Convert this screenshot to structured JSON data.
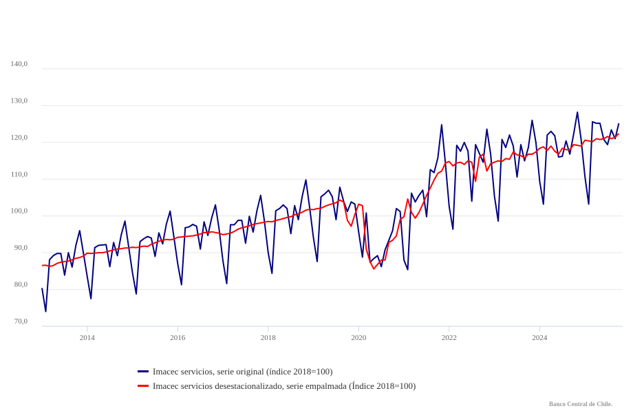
{
  "chart_data": {
    "type": "line",
    "title": "",
    "xlabel": "",
    "ylabel": "",
    "ylim": [
      70,
      140
    ],
    "yticks": [
      "70,0",
      "80,0",
      "90,0",
      "100,0",
      "110,0",
      "120,0",
      "130,0",
      "140,0"
    ],
    "ytick_values": [
      70,
      80,
      90,
      100,
      110,
      120,
      130,
      140
    ],
    "xticks": [
      "2014",
      "2016",
      "2018",
      "2020",
      "2022",
      "2024"
    ],
    "x_start": "2013-01",
    "x_frequency": "monthly",
    "grid": true,
    "legend_position": "bottom",
    "series": [
      {
        "name": "Imacec servicios, serie original (índice 2018=100)",
        "color": "#000080",
        "values": [
          80.4,
          74.0,
          88.1,
          89.2,
          89.8,
          89.8,
          83.9,
          90.0,
          86.1,
          92.0,
          96.0,
          89.8,
          83.5,
          77.5,
          91.4,
          92.0,
          92.1,
          92.2,
          86.2,
          92.8,
          89.2,
          94.8,
          98.6,
          91.6,
          84.6,
          78.8,
          93.0,
          93.8,
          94.4,
          94.0,
          89.0,
          95.4,
          92.4,
          97.8,
          101.3,
          94.2,
          87.0,
          81.3,
          96.8,
          97.0,
          97.7,
          97.2,
          91.0,
          98.4,
          94.7,
          99.4,
          103.0,
          96.2,
          87.8,
          81.6,
          97.6,
          97.6,
          98.8,
          98.8,
          92.6,
          99.9,
          95.6,
          101.4,
          105.6,
          98.6,
          90.0,
          84.4,
          101.4,
          102.0,
          103.0,
          102.0,
          95.2,
          102.8,
          99.0,
          105.2,
          109.8,
          102.2,
          94.0,
          87.6,
          105.2,
          106.0,
          107.0,
          105.2,
          99.0,
          107.8,
          104.0,
          101.2,
          103.8,
          103.2,
          95.6,
          88.8,
          100.8,
          87.4,
          88.4,
          89.2,
          86.2,
          90.8,
          93.4,
          96.0,
          102.0,
          101.2,
          88.0,
          85.4,
          106.2,
          103.8,
          105.6,
          107.0,
          99.8,
          112.6,
          111.8,
          115.8,
          124.8,
          114.2,
          102.6,
          96.4,
          119.2,
          117.6,
          120.0,
          117.6,
          104.0,
          119.4,
          117.0,
          114.6,
          123.6,
          116.8,
          105.4,
          98.6,
          120.8,
          118.6,
          122.0,
          119.0,
          110.6,
          119.4,
          115.0,
          118.6,
          126.0,
          120.0,
          109.4,
          103.2,
          122.0,
          123.0,
          121.8,
          116.0,
          116.2,
          120.4,
          116.8,
          122.2,
          128.2,
          120.8,
          110.8,
          103.2,
          125.6,
          125.2,
          125.2,
          120.8,
          119.4,
          123.4,
          121.0,
          125.2
        ]
      },
      {
        "name": "Imacec servicios desestacionalizado, serie empalmada (Índice 2018=100)",
        "color": "#ff0000",
        "values": [
          86.5,
          86.6,
          86.3,
          86.5,
          87.1,
          87.4,
          87.6,
          87.7,
          88.1,
          88.5,
          88.7,
          89.1,
          89.9,
          89.8,
          89.9,
          90.0,
          90.0,
          90.2,
          90.5,
          90.8,
          91.0,
          91.1,
          91.3,
          91.3,
          91.5,
          91.4,
          91.6,
          91.8,
          91.7,
          92.3,
          92.7,
          93.1,
          93.4,
          93.6,
          93.5,
          93.7,
          94.2,
          94.3,
          94.4,
          94.5,
          94.6,
          94.8,
          95.1,
          95.5,
          95.4,
          95.7,
          95.5,
          95.3,
          94.9,
          95.1,
          95.3,
          95.8,
          96.4,
          96.8,
          97.0,
          97.3,
          97.7,
          97.9,
          98.1,
          98.3,
          98.5,
          98.4,
          98.8,
          99.0,
          99.3,
          99.6,
          99.8,
          100.3,
          100.6,
          101.0,
          101.6,
          101.8,
          101.7,
          102.0,
          102.1,
          102.6,
          103.0,
          103.3,
          103.6,
          104.3,
          103.8,
          98.8,
          97.2,
          100.4,
          103.2,
          102.8,
          91.0,
          87.6,
          85.6,
          86.8,
          88.0,
          88.0,
          92.8,
          93.4,
          94.6,
          99.0,
          99.8,
          104.6,
          101.0,
          99.4,
          101.0,
          103.2,
          105.6,
          107.6,
          109.8,
          111.6,
          112.2,
          114.4,
          114.8,
          113.6,
          114.4,
          114.6,
          114.0,
          115.0,
          114.6,
          109.4,
          116.0,
          116.8,
          112.2,
          114.2,
          114.6,
          115.0,
          114.8,
          115.6,
          115.4,
          117.4,
          116.6,
          116.4,
          115.8,
          116.8,
          116.8,
          117.4,
          118.4,
          118.8,
          117.8,
          119.0,
          117.6,
          116.8,
          118.4,
          118.0,
          118.0,
          119.4,
          119.2,
          119.0,
          120.6,
          120.4,
          120.2,
          121.0,
          120.8,
          121.0,
          121.6,
          121.0,
          121.4,
          122.4
        ]
      }
    ]
  },
  "legend": {
    "items": [
      {
        "label": "Imacec servicios, serie original (índice 2018=100)",
        "color": "#000080"
      },
      {
        "label": "Imacec servicios desestacionalizado, serie empalmada (Índice 2018=100)",
        "color": "#ff0000"
      }
    ]
  },
  "credits": "Banco Central de Chile."
}
